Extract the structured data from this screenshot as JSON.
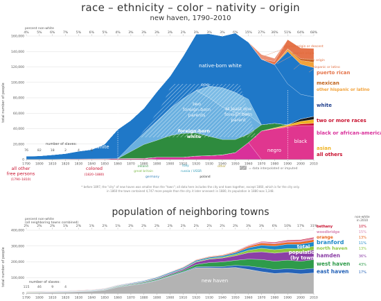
{
  "chart_data": [
    {
      "type": "area",
      "title": "race – ethnicity – color – nativity – origin",
      "subtitle": "new haven, 1790–2010",
      "ylabel": "total number of people",
      "ylim": [
        0,
        160000
      ],
      "yticks": [
        "0",
        "20,000",
        "40,000",
        "60,000",
        "80,000",
        "100,000",
        "120,000",
        "140,000",
        "160,000"
      ],
      "ytick_values": [
        0,
        20000,
        40000,
        60000,
        80000,
        100000,
        120000,
        140000,
        160000
      ],
      "xlim": [
        1790,
        2010
      ],
      "xticks": [
        1790,
        1800,
        1810,
        1820,
        1830,
        1840,
        1850,
        1860,
        1870,
        1880,
        1890,
        1900,
        1910,
        1920,
        1930,
        1940,
        1950,
        1960,
        1970,
        1980,
        1990,
        2000,
        2010
      ],
      "top_axis_title": "percent non-white",
      "percent_nonwhite": {
        "years": [
          1790,
          1800,
          1810,
          1820,
          1830,
          1840,
          1850,
          1860,
          1870,
          1880,
          1890,
          1900,
          1910,
          1920,
          1930,
          1940,
          1950,
          1960,
          1970,
          1980,
          1990,
          2000,
          2010
        ],
        "labels": [
          "4%",
          "5%",
          "6%",
          "7%",
          "5%",
          "6%",
          "5%",
          "4%",
          "3%",
          "3%",
          "3%",
          "3%",
          "2%",
          "3%",
          "3%",
          "3%",
          "6%",
          "15%",
          "27%",
          "36%",
          "51%",
          "64%",
          "68%"
        ]
      },
      "slaves": {
        "title": "number of slaves:",
        "years": [
          1790,
          1800,
          1810,
          1820,
          1830,
          1840
        ],
        "values": [
          "76",
          "82",
          "18",
          "2",
          "4",
          "6"
        ]
      },
      "x": [
        1790,
        1800,
        1810,
        1820,
        1830,
        1840,
        1850,
        1860,
        1870,
        1880,
        1890,
        1900,
        1910,
        1920,
        1930,
        1940,
        1950,
        1960,
        1970,
        1980,
        1990,
        2000,
        2010
      ],
      "series": [
        {
          "name": "all other free persons",
          "color": "#d9155a",
          "values": [
            300,
            300,
            300,
            0,
            0,
            0,
            0,
            0,
            0,
            0,
            0,
            0,
            0,
            0,
            0,
            0,
            0,
            0,
            0,
            0,
            0,
            0,
            0
          ]
        },
        {
          "name": "colored",
          "color": "#c9246e",
          "values": [
            0,
            0,
            0,
            600,
            700,
            900,
            1000,
            1300,
            1400,
            1500,
            0,
            0,
            0,
            0,
            0,
            0,
            0,
            0,
            0,
            0,
            0,
            0,
            0
          ]
        },
        {
          "name": "negro",
          "color": "#d9309a",
          "values": [
            0,
            0,
            0,
            0,
            0,
            0,
            0,
            0,
            0,
            0,
            3000,
            3000,
            3000,
            4500,
            5000,
            6000,
            9000,
            22000,
            0,
            0,
            0,
            0,
            0
          ]
        },
        {
          "name": "black",
          "color": "#e0368f",
          "values": [
            0,
            0,
            0,
            0,
            0,
            0,
            0,
            0,
            0,
            0,
            0,
            0,
            0,
            0,
            0,
            0,
            0,
            0,
            37000,
            40000,
            42000,
            44000,
            44000
          ]
        },
        {
          "name": "all others",
          "color": "#c8102e",
          "values": [
            0,
            0,
            0,
            0,
            0,
            0,
            0,
            0,
            0,
            0,
            0,
            0,
            0,
            0,
            0,
            0,
            0,
            0,
            0,
            0,
            1000,
            2000,
            3000
          ]
        },
        {
          "name": "asian",
          "color": "#f0b323",
          "values": [
            0,
            0,
            0,
            0,
            0,
            0,
            0,
            0,
            0,
            0,
            0,
            0,
            0,
            0,
            0,
            0,
            0,
            0,
            0,
            1000,
            2000,
            3500,
            5000
          ]
        },
        {
          "name": "two or more races",
          "color": "#1a1a1a",
          "values": [
            0,
            0,
            0,
            0,
            0,
            0,
            0,
            0,
            0,
            0,
            0,
            0,
            0,
            0,
            0,
            0,
            0,
            0,
            0,
            0,
            0,
            3000,
            4000
          ]
        },
        {
          "name": "foreign-born white",
          "color": "#2e8b3e",
          "values": [
            0,
            0,
            0,
            0,
            0,
            0,
            0,
            0,
            9000,
            18000,
            22000,
            28000,
            31000,
            30000,
            25000,
            20000,
            17000,
            11000,
            8000,
            6000,
            0,
            0,
            0
          ]
        },
        {
          "name": "two foreign-born parents",
          "color": "#6ab0e0",
          "values": [
            0,
            0,
            0,
            0,
            0,
            0,
            0,
            0,
            8000,
            15000,
            25000,
            35000,
            45000,
            55000,
            50000,
            42000,
            35000,
            25000,
            0,
            0,
            0,
            0,
            0
          ]
        },
        {
          "name": "at least one foreign-born parent",
          "color": "#7bbbe5",
          "values": [
            0,
            0,
            0,
            0,
            0,
            0,
            0,
            0,
            0,
            0,
            0,
            0,
            0,
            0,
            15000,
            25000,
            26000,
            20000,
            0,
            0,
            0,
            0,
            0
          ]
        },
        {
          "name": "native-born white",
          "color": "#1f78c8",
          "values": [
            4000,
            4500,
            5800,
            7100,
            10100,
            12000,
            19000,
            37700,
            32400,
            32000,
            38000,
            42000,
            55000,
            73000,
            68000,
            67000,
            77000,
            74000,
            85000,
            76000,
            53000,
            32000,
            25000
          ]
        },
        {
          "name": "white",
          "color": "#1f78c8",
          "values": [
            0,
            0,
            0,
            0,
            0,
            0,
            0,
            0,
            0,
            0,
            0,
            0,
            0,
            0,
            0,
            0,
            0,
            0,
            0,
            0,
            42000,
            39000,
            38000
          ]
        },
        {
          "name": "other hispanic or latino",
          "color": "#f2a23a",
          "values": [
            0,
            0,
            0,
            0,
            0,
            0,
            0,
            0,
            0,
            0,
            0,
            0,
            0,
            0,
            0,
            0,
            0,
            0,
            0,
            0,
            3000,
            5000,
            7000
          ]
        },
        {
          "name": "mexican",
          "color": "#c0621a",
          "values": [
            0,
            0,
            0,
            0,
            0,
            0,
            0,
            0,
            0,
            0,
            0,
            0,
            0,
            0,
            0,
            0,
            0,
            0,
            0,
            0,
            500,
            2000,
            4000
          ]
        },
        {
          "name": "puerto rican",
          "color": "#e5744a",
          "values": [
            0,
            0,
            0,
            0,
            0,
            0,
            0,
            0,
            0,
            0,
            0,
            0,
            0,
            0,
            0,
            0,
            0,
            0,
            0,
            4000,
            12000,
            14000,
            14000
          ]
        },
        {
          "name": "spanish origin",
          "color": "#ec9175",
          "values": [
            0,
            0,
            0,
            0,
            0,
            0,
            0,
            0,
            0,
            0,
            0,
            0,
            0,
            0,
            0,
            0,
            0,
            0,
            6000,
            4000,
            0,
            0,
            0
          ]
        }
      ],
      "annotations": {
        "native_born_white": "native-born white",
        "one": "one",
        "two_foreign_born": "two foreign-born parents",
        "at_least_one": "at least one foreign-born parent",
        "foreign_born_white": "foreign-born white",
        "white_left": "white",
        "negro": "negro",
        "black": "black",
        "other_small": "other",
        "all_other_free": "all other free persons",
        "all_other_free_years": "(1790–1810)",
        "colored": "colored",
        "colored_years": "(1820–1880)",
        "ireland": "ireland",
        "great_britain": "great britain",
        "germany": "germany",
        "italy": "italy",
        "russia_ussr": "russia / USSR",
        "poland": "poland",
        "spanish_origin_or_descent": "spanish origin or descent",
        "spanish_origin": "spanish origin",
        "hispanic_origin": "hispanic origin",
        "hispanic_or_latino": "hispanic or latino",
        "interpolated": "= data interpolated or imputed"
      },
      "legend_right": [
        "puerto rican",
        "mexican",
        "other hispanic or latino",
        "white",
        "two or more races",
        "black or african-american",
        "asian",
        "all others"
      ],
      "footnote1": "* before 1897, the \"city\" of new haven was smaller than the \"town\"; all data here includes the city and town together, except 1860, which is for the city only.",
      "footnote2": "in 1860 the town contained 4,747 more people than the city. it later annexed: in 1880, its population in 1880 was 1,348."
    },
    {
      "type": "area",
      "title": "population of neighboring towns",
      "ylabel": "total number of people",
      "ylim": [
        0,
        400000
      ],
      "yticks": [
        "0",
        "100,000",
        "200,000",
        "300,000",
        "400,000"
      ],
      "ytick_values": [
        0,
        100000,
        200000,
        300000,
        400000
      ],
      "top_axis_title": "percent non-white",
      "top_axis_subtitle": "(all neighboring towns combined)",
      "percent_nonwhite": {
        "years": [
          1790,
          1800,
          1810,
          1820,
          1830,
          1840,
          1850,
          1860,
          1870,
          1880,
          1890,
          1900,
          1910,
          1920,
          1930,
          1940,
          1950,
          1960,
          1970,
          1980,
          1990,
          2000,
          2010
        ],
        "labels": [
          "2%",
          "2%",
          "2%",
          "1%",
          "2%",
          "1%",
          "2%",
          "1%",
          "2%",
          "2%",
          "2%",
          "2%",
          "2%",
          "2%",
          "2%",
          "2%",
          "2%",
          "3%",
          "3%",
          "6%",
          "10%",
          "17%",
          "31%"
        ]
      },
      "slaves": {
        "title": "number of slaves:",
        "years": [
          1790,
          1800,
          1810,
          1820
        ],
        "values": [
          "115",
          "46",
          "9",
          "4"
        ]
      },
      "total_label": "total population (by town)",
      "legend_header": "non-white in 2010",
      "x": [
        1790,
        1800,
        1810,
        1820,
        1830,
        1840,
        1850,
        1860,
        1870,
        1880,
        1890,
        1900,
        1910,
        1920,
        1930,
        1940,
        1950,
        1960,
        1970,
        1980,
        1990,
        2000,
        2010
      ],
      "series": [
        {
          "name": "new haven",
          "color": "#b3b3b3",
          "nonwhite": "",
          "values": [
            4500,
            4900,
            6100,
            7100,
            10200,
            12900,
            20300,
            39300,
            50800,
            62900,
            81300,
            108000,
            133600,
            162500,
            162700,
            160600,
            164400,
            152000,
            137700,
            126100,
            130500,
            123600,
            129800
          ]
        },
        {
          "name": "east haven",
          "color": "#2563b8",
          "nonwhite": "17%",
          "values": [
            1000,
            1000,
            1100,
            1200,
            1300,
            1400,
            1700,
            2000,
            2300,
            2600,
            2800,
            3000,
            3500,
            5500,
            7500,
            9000,
            13000,
            21000,
            25000,
            25000,
            26000,
            28000,
            29000
          ]
        },
        {
          "name": "west haven",
          "color": "#2e9b4a",
          "nonwhite": "43%",
          "values": [
            1000,
            1000,
            1100,
            1200,
            1300,
            1500,
            2000,
            3000,
            4000,
            5000,
            6000,
            7000,
            8000,
            15000,
            25000,
            30000,
            32000,
            44000,
            52000,
            53000,
            54000,
            52000,
            55000
          ]
        },
        {
          "name": "hamden",
          "color": "#8b3fa6",
          "nonwhite": "36%",
          "values": [
            1500,
            1500,
            1700,
            1800,
            1900,
            2000,
            2200,
            2500,
            3000,
            3500,
            4500,
            6000,
            8000,
            15000,
            21000,
            24000,
            29000,
            41000,
            49000,
            51000,
            52000,
            57000,
            61000
          ]
        },
        {
          "name": "north haven",
          "color": "#8cc63f",
          "nonwhite": "13%",
          "values": [
            1000,
            1000,
            1000,
            1100,
            1100,
            1200,
            1300,
            1400,
            1500,
            1800,
            2000,
            2200,
            3000,
            3900,
            5000,
            6000,
            9000,
            15000,
            22000,
            22000,
            22000,
            23000,
            24000
          ]
        },
        {
          "name": "branford",
          "color": "#1e88c8",
          "nonwhite": "11%",
          "values": [
            1500,
            1500,
            1600,
            1700,
            1800,
            2000,
            2500,
            3000,
            3400,
            4000,
            5000,
            6000,
            6500,
            7000,
            7500,
            8000,
            10000,
            16000,
            20000,
            23000,
            27000,
            28000,
            28000
          ]
        },
        {
          "name": "orange",
          "color": "#e8651e",
          "nonwhite": "13%",
          "values": [
            800,
            800,
            900,
            900,
            1000,
            1000,
            1100,
            1200,
            1300,
            1500,
            2000,
            2500,
            3000,
            3500,
            4000,
            4500,
            6000,
            9000,
            13000,
            13000,
            13000,
            14000,
            14000
          ]
        },
        {
          "name": "woodbridge",
          "color": "#d88ab5",
          "nonwhite": "15%",
          "values": [
            800,
            800,
            800,
            800,
            900,
            900,
            900,
            900,
            900,
            900,
            900,
            1000,
            1000,
            1000,
            1500,
            2000,
            3000,
            5000,
            7000,
            7500,
            7900,
            8900,
            8900
          ]
        },
        {
          "name": "bethany",
          "color": "#c8102e",
          "nonwhite": "10%",
          "values": [
            700,
            700,
            700,
            700,
            700,
            700,
            700,
            700,
            700,
            700,
            700,
            700,
            700,
            700,
            800,
            900,
            1500,
            2000,
            3000,
            4000,
            4600,
            5000,
            5500
          ]
        }
      ]
    }
  ]
}
